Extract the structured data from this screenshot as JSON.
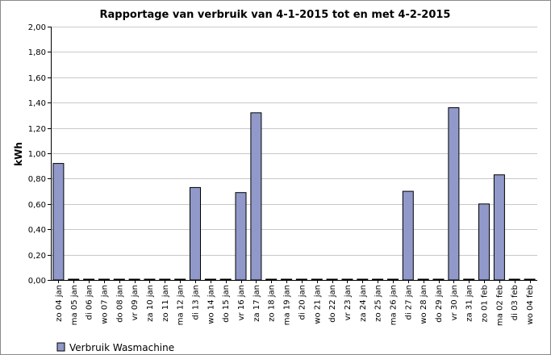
{
  "chart_data": {
    "type": "bar",
    "title": "Rapportage van verbruik van 4-1-2015 tot en met 4-2-2015",
    "xlabel": "",
    "ylabel": "kWh",
    "ylim": [
      0,
      2
    ],
    "yticks": [
      "0,00",
      "0,20",
      "0,40",
      "0,60",
      "0,80",
      "1,00",
      "1,20",
      "1,40",
      "1,60",
      "1,80",
      "2,00"
    ],
    "grid": true,
    "legend_position": "bottom-left",
    "colors": {
      "bar_fill": "#9099c9",
      "bar_stroke": "#000000",
      "grid": "#c8c8c8"
    },
    "categories": [
      "zo 04 jan",
      "ma 05 jan",
      "di 06 jan",
      "wo 07 jan",
      "do 08 jan",
      "vr 09 jan",
      "za 10 jan",
      "zo 11 jan",
      "ma 12 jan",
      "di 13 jan",
      "wo 14 jan",
      "do 15 jan",
      "vr 16 jan",
      "za 17 jan",
      "zo 18 jan",
      "ma 19 jan",
      "di 20 jan",
      "wo 21 jan",
      "do 22 jan",
      "vr 23 jan",
      "za 24 jan",
      "zo 25 jan",
      "ma 26 jan",
      "di 27 jan",
      "wo 28 jan",
      "do 29 jan",
      "vr 30 jan",
      "za 31 jan",
      "zo 01 feb",
      "ma 02 feb",
      "di 03 feb",
      "wo 04 feb"
    ],
    "series": [
      {
        "name": "Verbruik Wasmachine",
        "values": [
          0.92,
          0,
          0,
          0,
          0,
          0,
          0,
          0,
          0,
          0.73,
          0,
          0,
          0.69,
          1.32,
          0,
          0,
          0,
          0,
          0,
          0,
          0,
          0,
          0,
          0.7,
          0,
          0,
          1.36,
          0,
          0.6,
          0.83,
          0,
          0
        ]
      }
    ]
  }
}
